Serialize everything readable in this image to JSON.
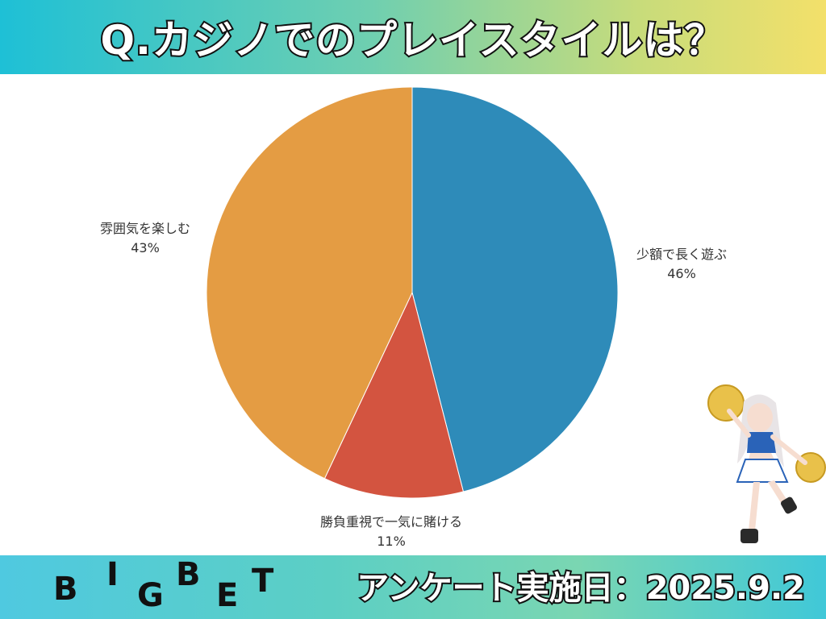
{
  "header": {
    "title": "Q.カジノでのプレイスタイルは？"
  },
  "footer": {
    "logo_letters": [
      "B",
      "I",
      "G",
      "B",
      "E",
      "T"
    ],
    "survey_date": "アンケート実施日：2025.9.2"
  },
  "colors": {
    "slice_1": "#2e8bb9",
    "slice_2": "#d35440",
    "slice_3": "#e49c43"
  },
  "icons": {
    "mascot": "cheerleader-character-icon"
  },
  "chart_data": {
    "type": "pie",
    "title": "Q.カジノでのプレイスタイルは？",
    "start_angle": "12 o'clock, clockwise",
    "slices": [
      {
        "label": "少額で長く遊ぶ",
        "value": 46,
        "value_label": "46%",
        "color": "#2e8bb9"
      },
      {
        "label": "勝負重視で一気に賭ける",
        "value": 11,
        "value_label": "11%",
        "color": "#d35440"
      },
      {
        "label": "雰囲気を楽しむ",
        "value": 43,
        "value_label": "43%",
        "color": "#e49c43"
      }
    ]
  }
}
